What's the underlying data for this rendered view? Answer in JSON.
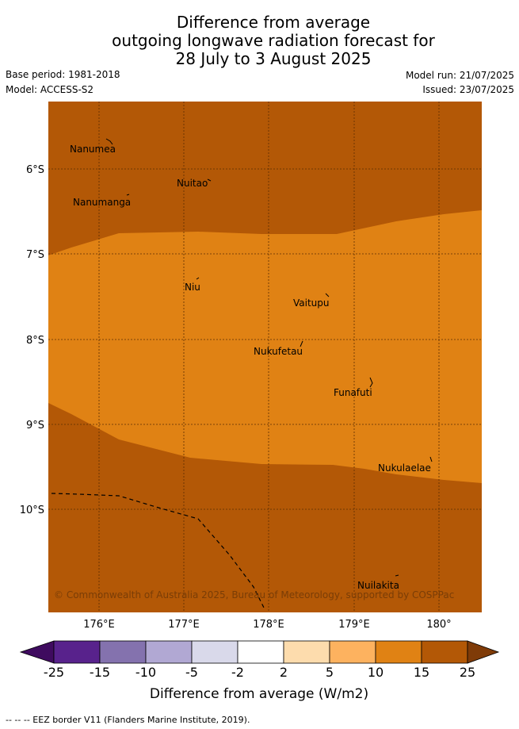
{
  "title_lines": [
    "Difference from average",
    "outgoing longwave radiation forecast for",
    "28 July to 3 August 2025"
  ],
  "base_period": "Base period: 1981-2018",
  "model": "Model: ACCESS-S2",
  "model_run": "Model run: 21/07/2025",
  "issued": "Issued: 23/07/2025",
  "map": {
    "lon_labels": [
      "176°E",
      "177°E",
      "178°E",
      "179°E",
      "180°"
    ],
    "lat_labels": [
      "6°S",
      "7°S",
      "8°S",
      "9°S",
      "10°S"
    ],
    "islands": [
      "Nanumea",
      "Nuitao",
      "Nanumanga",
      "Niu",
      "Vaitupu",
      "Nukufetau",
      "Funafuti",
      "Nukulaelae",
      "Nuilakita"
    ],
    "credit": "© Commonwealth of Australia 2025, Bureau of Meteorology, supported by COSPPac"
  },
  "colorbar": {
    "ticks": [
      "-25",
      "-15",
      "-10",
      "-5",
      "-2",
      "2",
      "5",
      "10",
      "15",
      "25"
    ],
    "colors": [
      "#3f0b5f",
      "#58228c",
      "#8472ae",
      "#b1a8d3",
      "#d9d9ea",
      "#ffffff",
      "#fddcad",
      "#fdb25f",
      "#e08214",
      "#b35806",
      "#7f3b08"
    ],
    "label": "Difference from average (W/m2)"
  },
  "legend_note": "--  --  -- EEZ border V11 (Flanders Marine Institute, 2019)."
}
